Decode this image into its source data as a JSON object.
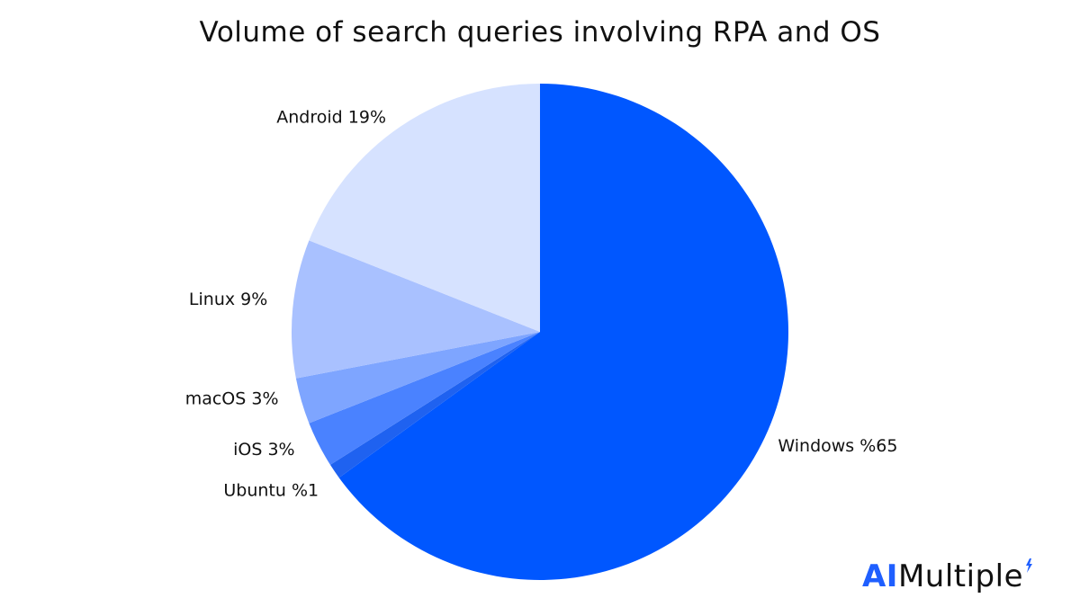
{
  "chart_data": {
    "type": "pie",
    "title": "Volume of search queries involving RPA and OS",
    "slices": [
      {
        "name": "Windows",
        "label": "Windows %65",
        "value": 65,
        "color": "#0057ff"
      },
      {
        "name": "Ubuntu",
        "label": "Ubuntu %1",
        "value": 1,
        "color": "#1f62f0"
      },
      {
        "name": "iOS",
        "label": "iOS 3%",
        "value": 3,
        "color": "#4a82ff"
      },
      {
        "name": "macOS",
        "label": "macOS 3%",
        "value": 3,
        "color": "#7ea5ff"
      },
      {
        "name": "Linux",
        "label": "Linux 9%",
        "value": 9,
        "color": "#a9c1ff"
      },
      {
        "name": "Android",
        "label": "Android 19%",
        "value": 19,
        "color": "#d6e2ff"
      }
    ],
    "start_angle_deg": 0,
    "direction": "clockwise",
    "legend": "none"
  },
  "brand": {
    "prefix": "AI",
    "rest": "Multiple",
    "prefix_color": "#1f5fff"
  }
}
